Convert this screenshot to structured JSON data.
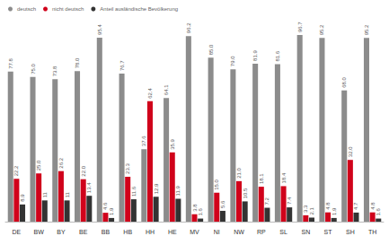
{
  "chart_data": {
    "type": "bar",
    "categories": [
      "DE",
      "BW",
      "BY",
      "BE",
      "BB",
      "HB",
      "HH",
      "HE",
      "MV",
      "NI",
      "NW",
      "RP",
      "SL",
      "SN",
      "ST",
      "SH",
      "TH"
    ],
    "series": [
      {
        "name": "deutsch",
        "color": "#8c8c8c",
        "values": [
          77.8,
          75.0,
          73.8,
          78.0,
          95.4,
          76.7,
          37.6,
          64.1,
          96.2,
          85.0,
          79.0,
          81.9,
          81.6,
          96.7,
          95.2,
          68.0,
          95.2
        ],
        "value_labels": [
          "77.8",
          "75.0",
          "73.8",
          "78.0",
          "95.4",
          "76.7",
          "37.6",
          "64.1",
          "96.2",
          "85.0",
          "79.0",
          "81.9",
          "81.6",
          "96.7",
          "95.2",
          "68.0",
          "95.2"
        ]
      },
      {
        "name": "nicht deutsch",
        "color": "#d0021b",
        "values": [
          22.2,
          25.0,
          26.2,
          22.0,
          4.6,
          23.3,
          62.4,
          35.9,
          3.8,
          15.0,
          21.0,
          18.1,
          18.4,
          3.3,
          4.8,
          32.0,
          4.8
        ],
        "value_labels": [
          "22.2",
          "25.0",
          "26.2",
          "22.0",
          "4.6",
          "23.3",
          "62.4",
          "35.9",
          "3.8",
          "15.0",
          "21.0",
          "18.1",
          "18.4",
          "3.3",
          "4.8",
          "32.0",
          "4.8"
        ]
      },
      {
        "name": "Anteil ausländische Bevölkerung",
        "color": "#333333",
        "values": [
          8.9,
          11,
          11,
          13.4,
          1.9,
          11.6,
          12.9,
          11.9,
          1.6,
          5.6,
          10.5,
          7.2,
          7.4,
          2.1,
          1.9,
          4.7,
          1.6
        ],
        "value_labels": [
          "8.9",
          "11",
          "11",
          "13.4",
          "1.9",
          "11.6",
          "12.9",
          "11.9",
          "1.6",
          "5.6",
          "10.5",
          "7.2",
          "7.4",
          "2.1",
          "1.9",
          "4.7",
          "1.6"
        ]
      }
    ],
    "ylim": [
      0,
      100
    ],
    "grid": false,
    "legend": "top-left",
    "data_labels": true,
    "tick_labels": "x"
  }
}
